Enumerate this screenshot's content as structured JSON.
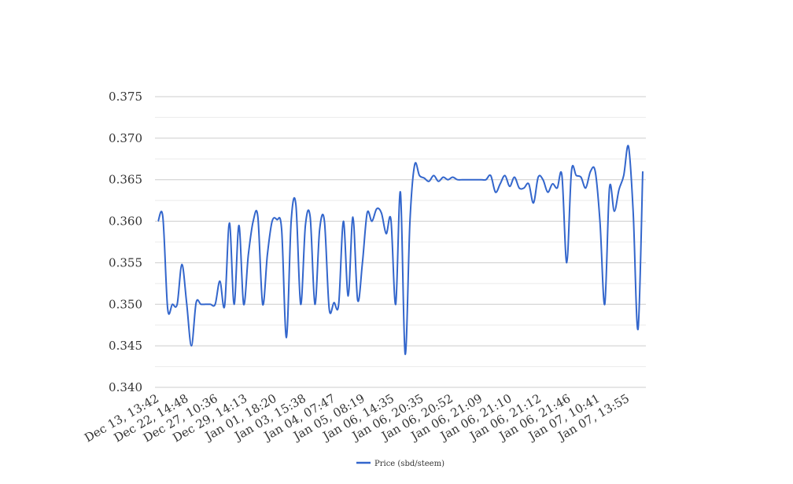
{
  "chart_data": {
    "type": "line",
    "title": "",
    "xlabel": "",
    "ylabel": "",
    "ylim": [
      0.34,
      0.375
    ],
    "y_ticks": [
      "0.340",
      "0.345",
      "0.350",
      "0.355",
      "0.360",
      "0.365",
      "0.370",
      "0.375"
    ],
    "x_tick_labels": [
      "Dec 13, 13:42",
      "Dec 22, 14:48",
      "Dec 27, 10:36",
      "Dec 29, 14:13",
      "Jan 01, 18:20",
      "Jan 03, 15:38",
      "Jan 04, 07:47",
      "Jan 05, 08:19",
      "Jan 06, 14:35",
      "Jan 06, 20:35",
      "Jan 06, 20:52",
      "Jan 06, 21:09",
      "Jan 06, 21:10",
      "Jan 06, 21:12",
      "Jan 06, 21:46",
      "Jan 07, 10:41",
      "Jan 07, 13:55"
    ],
    "grid": true,
    "legend_position": "bottom",
    "color": "#3366cc",
    "series": [
      {
        "name": "Price (sbd/steem)",
        "values": [
          0.36,
          0.3605,
          0.3495,
          0.35,
          0.35,
          0.3548,
          0.3502,
          0.345,
          0.3502,
          0.35,
          0.35,
          0.35,
          0.35,
          0.3528,
          0.3498,
          0.3598,
          0.35,
          0.3595,
          0.35,
          0.356,
          0.36,
          0.3605,
          0.35,
          0.356,
          0.36,
          0.3602,
          0.359,
          0.346,
          0.36,
          0.362,
          0.35,
          0.3595,
          0.3605,
          0.35,
          0.359,
          0.36,
          0.3495,
          0.3502,
          0.35,
          0.36,
          0.351,
          0.3605,
          0.3505,
          0.355,
          0.361,
          0.36,
          0.3615,
          0.361,
          0.3585,
          0.3602,
          0.35,
          0.3635,
          0.344,
          0.36,
          0.3668,
          0.3655,
          0.3652,
          0.3648,
          0.3655,
          0.3648,
          0.3653,
          0.365,
          0.3653,
          0.365,
          0.365,
          0.365,
          0.365,
          0.365,
          0.365,
          0.365,
          0.3655,
          0.3635,
          0.3645,
          0.3655,
          0.3642,
          0.3653,
          0.364,
          0.364,
          0.3645,
          0.3622,
          0.3653,
          0.365,
          0.3635,
          0.3645,
          0.364,
          0.3655,
          0.355,
          0.366,
          0.3655,
          0.3653,
          0.364,
          0.366,
          0.366,
          0.36,
          0.35,
          0.364,
          0.3612,
          0.3638,
          0.3655,
          0.369,
          0.361,
          0.347,
          0.366
        ]
      }
    ]
  }
}
